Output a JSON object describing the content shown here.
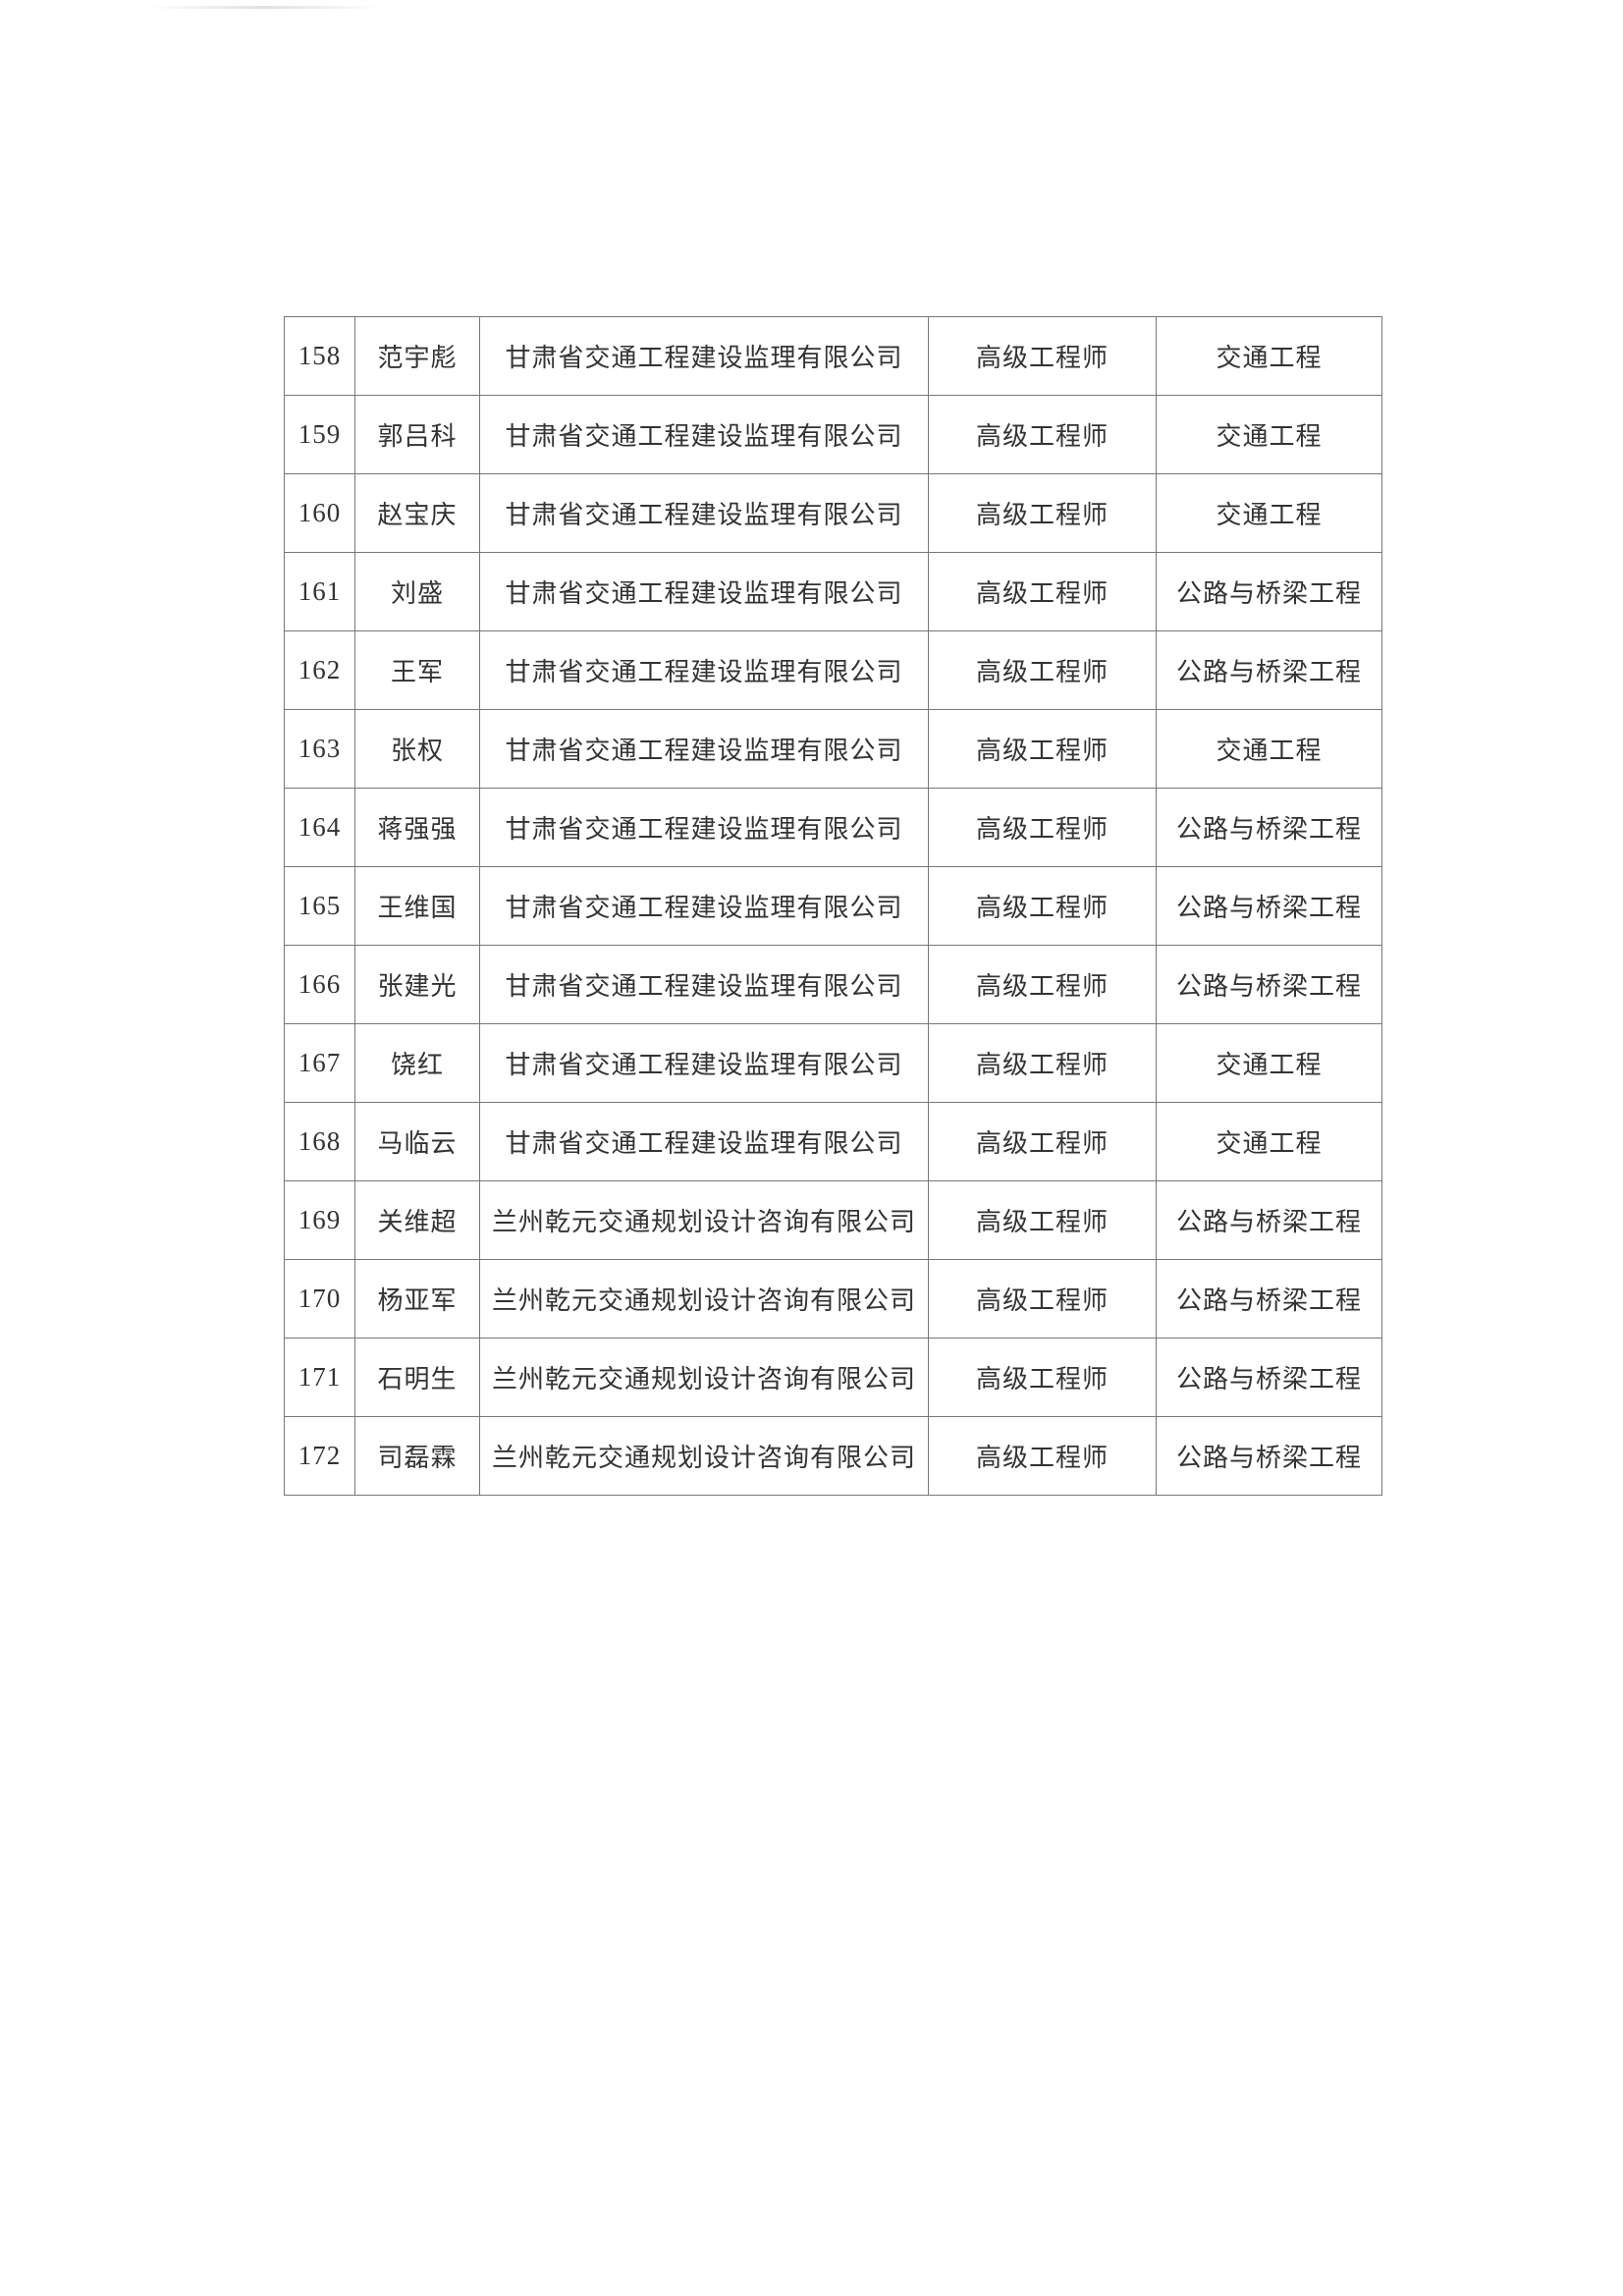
{
  "rows": [
    {
      "no": "158",
      "name": "范宇彪",
      "company": "甘肃省交通工程建设监理有限公司",
      "title": "高级工程师",
      "field": "交通工程"
    },
    {
      "no": "159",
      "name": "郭吕科",
      "company": "甘肃省交通工程建设监理有限公司",
      "title": "高级工程师",
      "field": "交通工程"
    },
    {
      "no": "160",
      "name": "赵宝庆",
      "company": "甘肃省交通工程建设监理有限公司",
      "title": "高级工程师",
      "field": "交通工程"
    },
    {
      "no": "161",
      "name": "刘盛",
      "company": "甘肃省交通工程建设监理有限公司",
      "title": "高级工程师",
      "field": "公路与桥梁工程"
    },
    {
      "no": "162",
      "name": "王军",
      "company": "甘肃省交通工程建设监理有限公司",
      "title": "高级工程师",
      "field": "公路与桥梁工程"
    },
    {
      "no": "163",
      "name": "张权",
      "company": "甘肃省交通工程建设监理有限公司",
      "title": "高级工程师",
      "field": "交通工程"
    },
    {
      "no": "164",
      "name": "蒋强强",
      "company": "甘肃省交通工程建设监理有限公司",
      "title": "高级工程师",
      "field": "公路与桥梁工程"
    },
    {
      "no": "165",
      "name": "王维国",
      "company": "甘肃省交通工程建设监理有限公司",
      "title": "高级工程师",
      "field": "公路与桥梁工程"
    },
    {
      "no": "166",
      "name": "张建光",
      "company": "甘肃省交通工程建设监理有限公司",
      "title": "高级工程师",
      "field": "公路与桥梁工程"
    },
    {
      "no": "167",
      "name": "饶红",
      "company": "甘肃省交通工程建设监理有限公司",
      "title": "高级工程师",
      "field": "交通工程"
    },
    {
      "no": "168",
      "name": "马临云",
      "company": "甘肃省交通工程建设监理有限公司",
      "title": "高级工程师",
      "field": "交通工程"
    },
    {
      "no": "169",
      "name": "关维超",
      "company": "兰州乾元交通规划设计咨询有限公司",
      "title": "高级工程师",
      "field": "公路与桥梁工程"
    },
    {
      "no": "170",
      "name": "杨亚军",
      "company": "兰州乾元交通规划设计咨询有限公司",
      "title": "高级工程师",
      "field": "公路与桥梁工程"
    },
    {
      "no": "171",
      "name": "石明生",
      "company": "兰州乾元交通规划设计咨询有限公司",
      "title": "高级工程师",
      "field": "公路与桥梁工程"
    },
    {
      "no": "172",
      "name": "司磊霖",
      "company": "兰州乾元交通规划设计咨询有限公司",
      "title": "高级工程师",
      "field": "公路与桥梁工程"
    }
  ]
}
